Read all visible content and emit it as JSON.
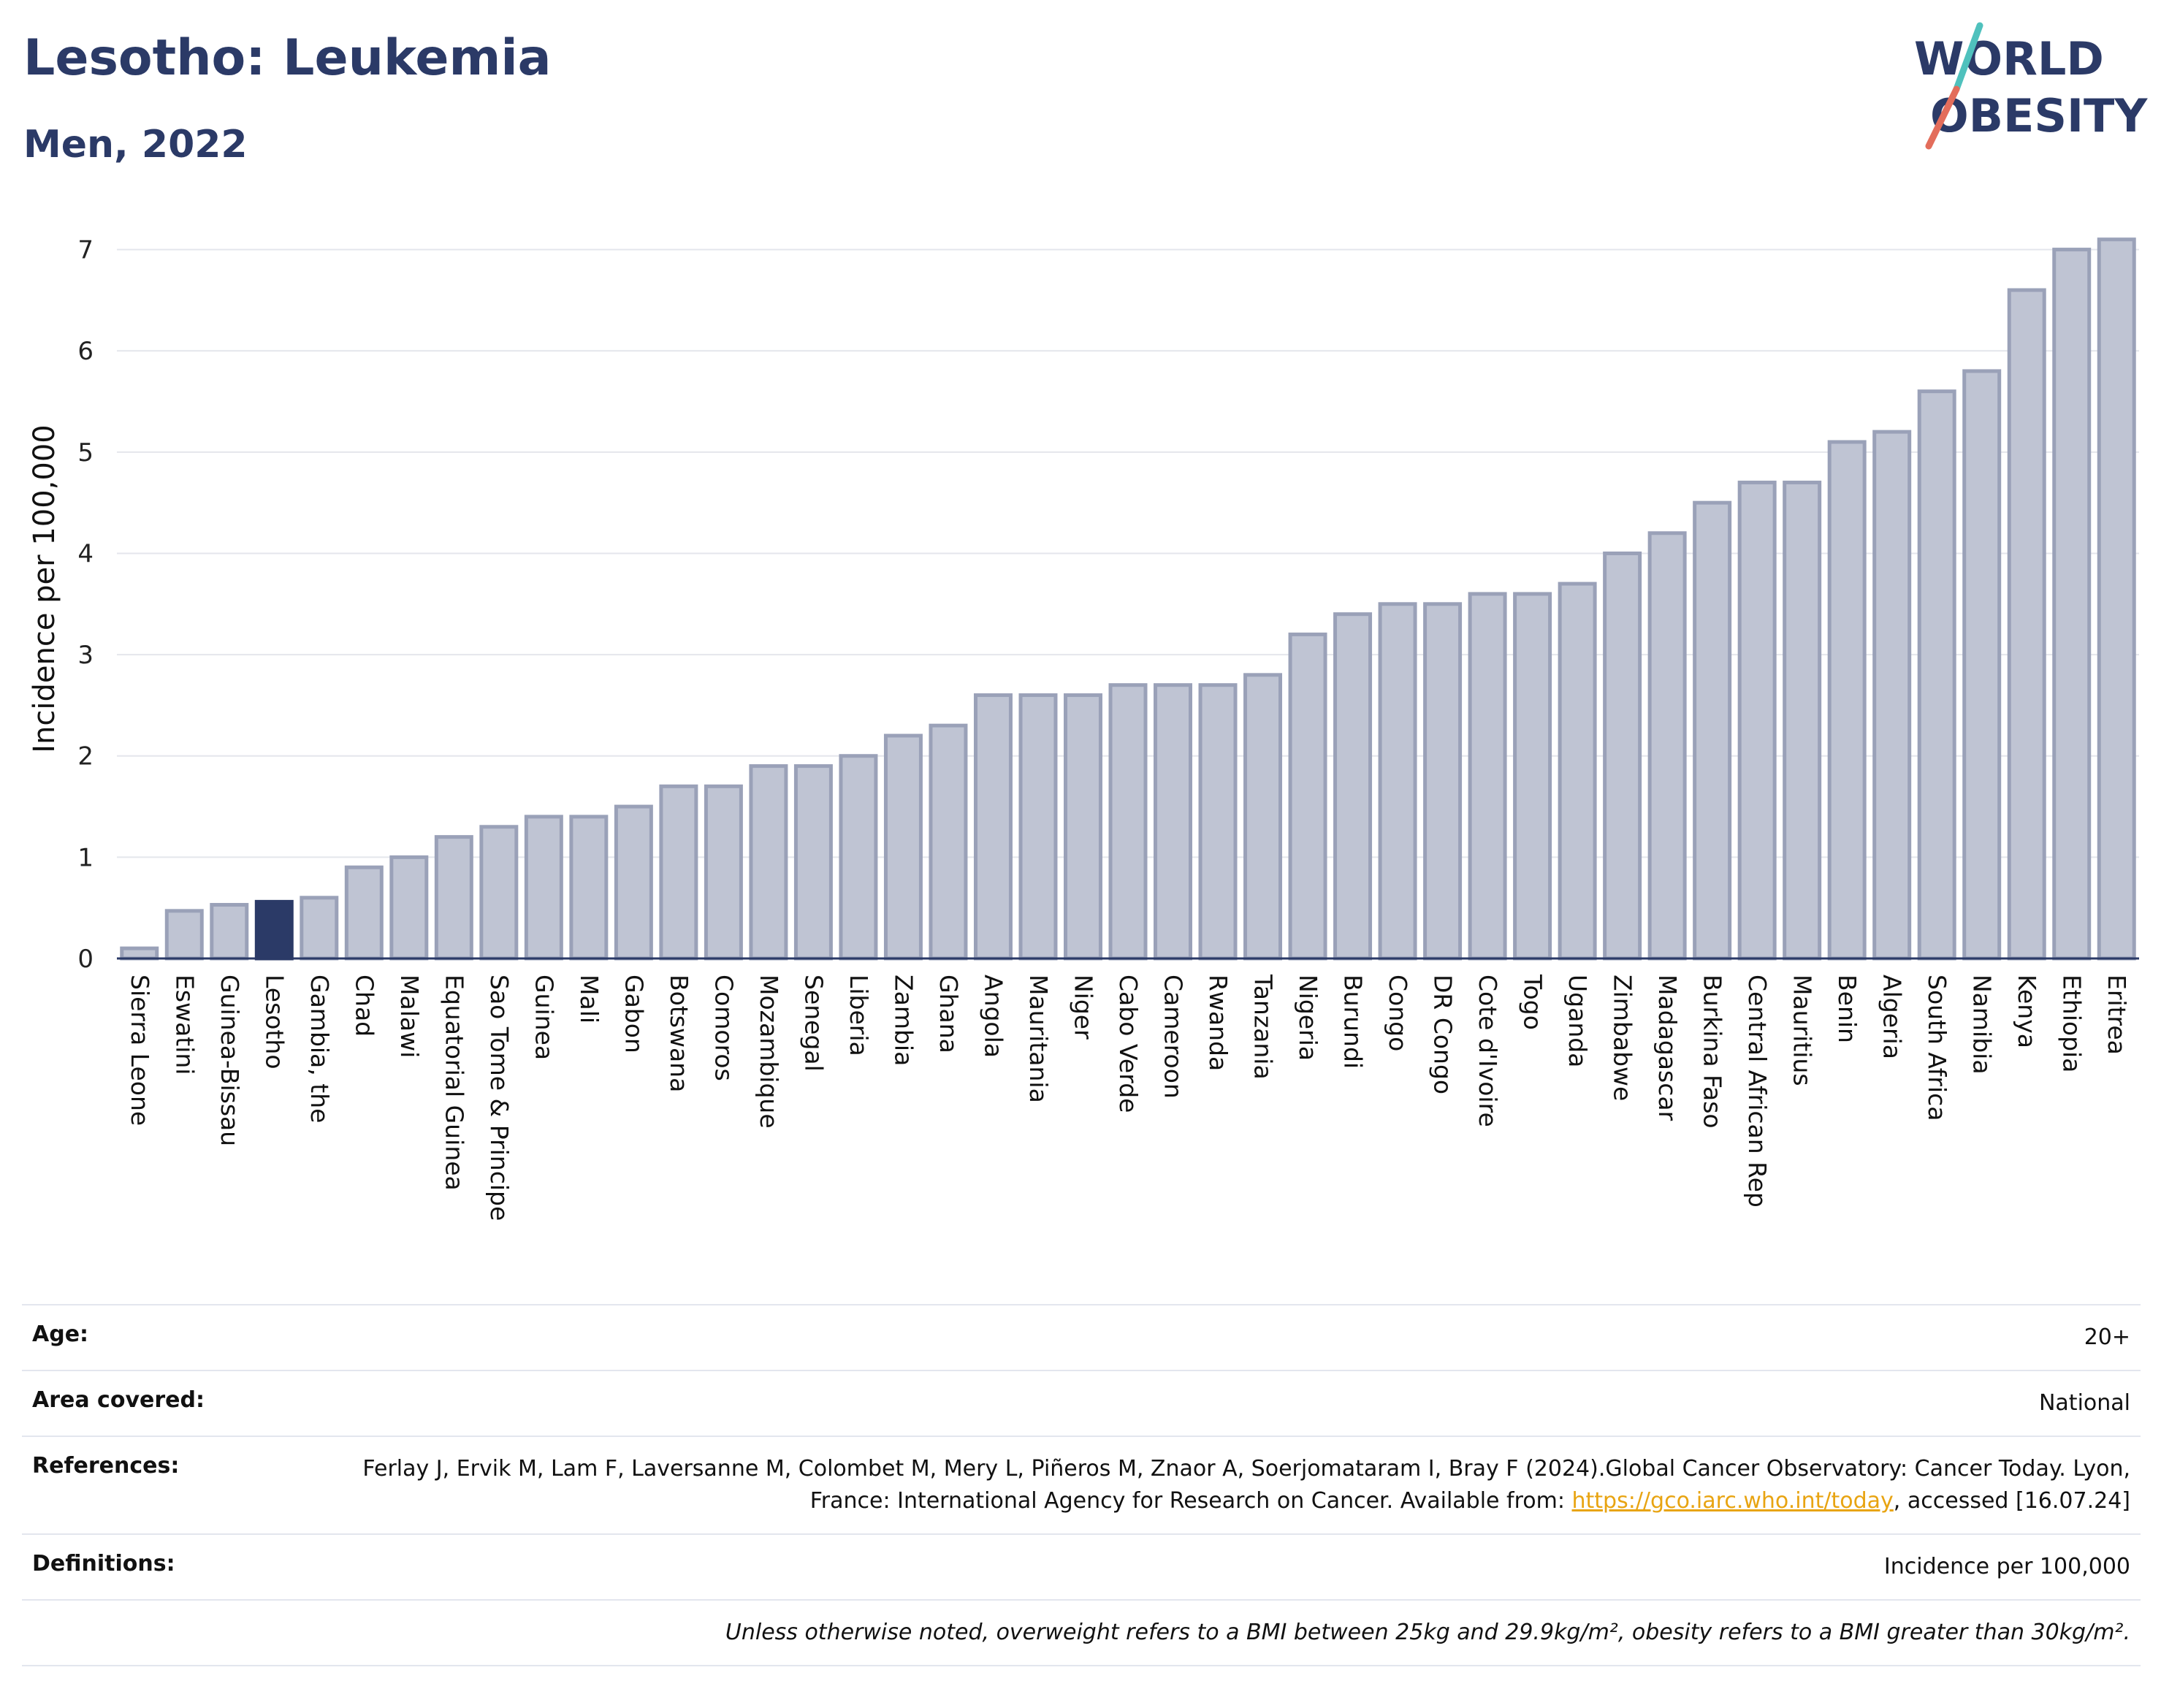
{
  "header": {
    "title": "Lesotho: Leukemia",
    "subtitle": "Men, 2022"
  },
  "logo": {
    "line1": "WORLD",
    "line2": "OBESITY",
    "slash_colors": [
      "#4fc1bd",
      "#e36d5b"
    ],
    "text_color": "#2b3a67"
  },
  "colors": {
    "highlight": "#2b3a67",
    "bar_fill": "#bfc4d3",
    "bar_stroke": "#9aa1b8",
    "title": "#2b3a67",
    "link": "#e8a412"
  },
  "chart_data": {
    "type": "bar",
    "ylabel": "Incidence per 100,000",
    "ylim": [
      0,
      7.3
    ],
    "yticks": [
      0,
      1,
      2,
      3,
      4,
      5,
      6,
      7
    ],
    "grid": true,
    "highlight": "Lesotho",
    "categories": [
      "Sierra Leone",
      "Eswatini",
      "Guinea-Bissau",
      "Lesotho",
      "Gambia, the",
      "Chad",
      "Malawi",
      "Equatorial Guinea",
      "Sao Tome & Principe",
      "Guinea",
      "Mali",
      "Gabon",
      "Botswana",
      "Comoros",
      "Mozambique",
      "Senegal",
      "Liberia",
      "Zambia",
      "Ghana",
      "Angola",
      "Mauritania",
      "Niger",
      "Cabo Verde",
      "Cameroon",
      "Rwanda",
      "Tanzania",
      "Nigeria",
      "Burundi",
      "Congo",
      "DR Congo",
      "Cote d'Ivoire",
      "Togo",
      "Uganda",
      "Zimbabwe",
      "Madagascar",
      "Burkina Faso",
      "Central African Rep",
      "Mauritius",
      "Benin",
      "Algeria",
      "South Africa",
      "Namibia",
      "Kenya",
      "Ethiopia",
      "Eritrea"
    ],
    "values": [
      0.1,
      0.47,
      0.53,
      0.56,
      0.6,
      0.9,
      1.0,
      1.2,
      1.3,
      1.4,
      1.4,
      1.5,
      1.7,
      1.7,
      1.9,
      1.9,
      2.0,
      2.2,
      2.3,
      2.6,
      2.6,
      2.6,
      2.7,
      2.7,
      2.7,
      2.8,
      3.2,
      3.4,
      3.5,
      3.5,
      3.6,
      3.6,
      3.7,
      4.0,
      4.2,
      4.5,
      4.7,
      4.7,
      5.1,
      5.2,
      5.6,
      5.8,
      6.6,
      7.0,
      7.1
    ]
  },
  "meta": {
    "age_label": "Age:",
    "age_value": "20+",
    "area_label": "Area covered:",
    "area_value": "National",
    "references_label": "References:",
    "references_text": "Ferlay J, Ervik M, Lam F, Laversanne M, Colombet M, Mery L, Piñeros M, Znaor A, Soerjomataram I, Bray F (2024).Global Cancer Observatory: Cancer Today. Lyon, France: International Agency for Research on Cancer. Available from: ",
    "references_link": "https://gco.iarc.who.int/today",
    "references_tail": ", accessed [16.07.24]",
    "definitions_label": "Definitions:",
    "definitions_value": "Incidence per 100,000",
    "note": "Unless otherwise noted, overweight refers to a BMI between 25kg and 29.9kg/m², obesity refers to a BMI greater than 30kg/m²."
  }
}
